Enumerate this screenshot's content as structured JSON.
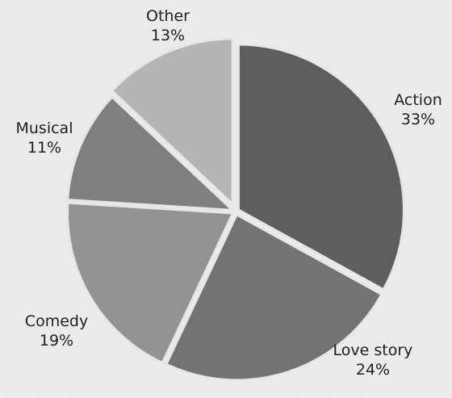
{
  "chart_data": {
    "type": "pie",
    "categories": [
      "Action",
      "Love story",
      "Comedy",
      "Musical",
      "Other"
    ],
    "values": [
      33,
      24,
      19,
      11,
      13
    ],
    "value_labels": [
      "33%",
      "24%",
      "19%",
      "11%",
      "13%"
    ],
    "colors": [
      "#5e5e5e",
      "#737373",
      "#939393",
      "#7f7f7f",
      "#b5b5b5"
    ],
    "start": "12 o'clock",
    "direction": "clockwise",
    "exploded": true
  }
}
